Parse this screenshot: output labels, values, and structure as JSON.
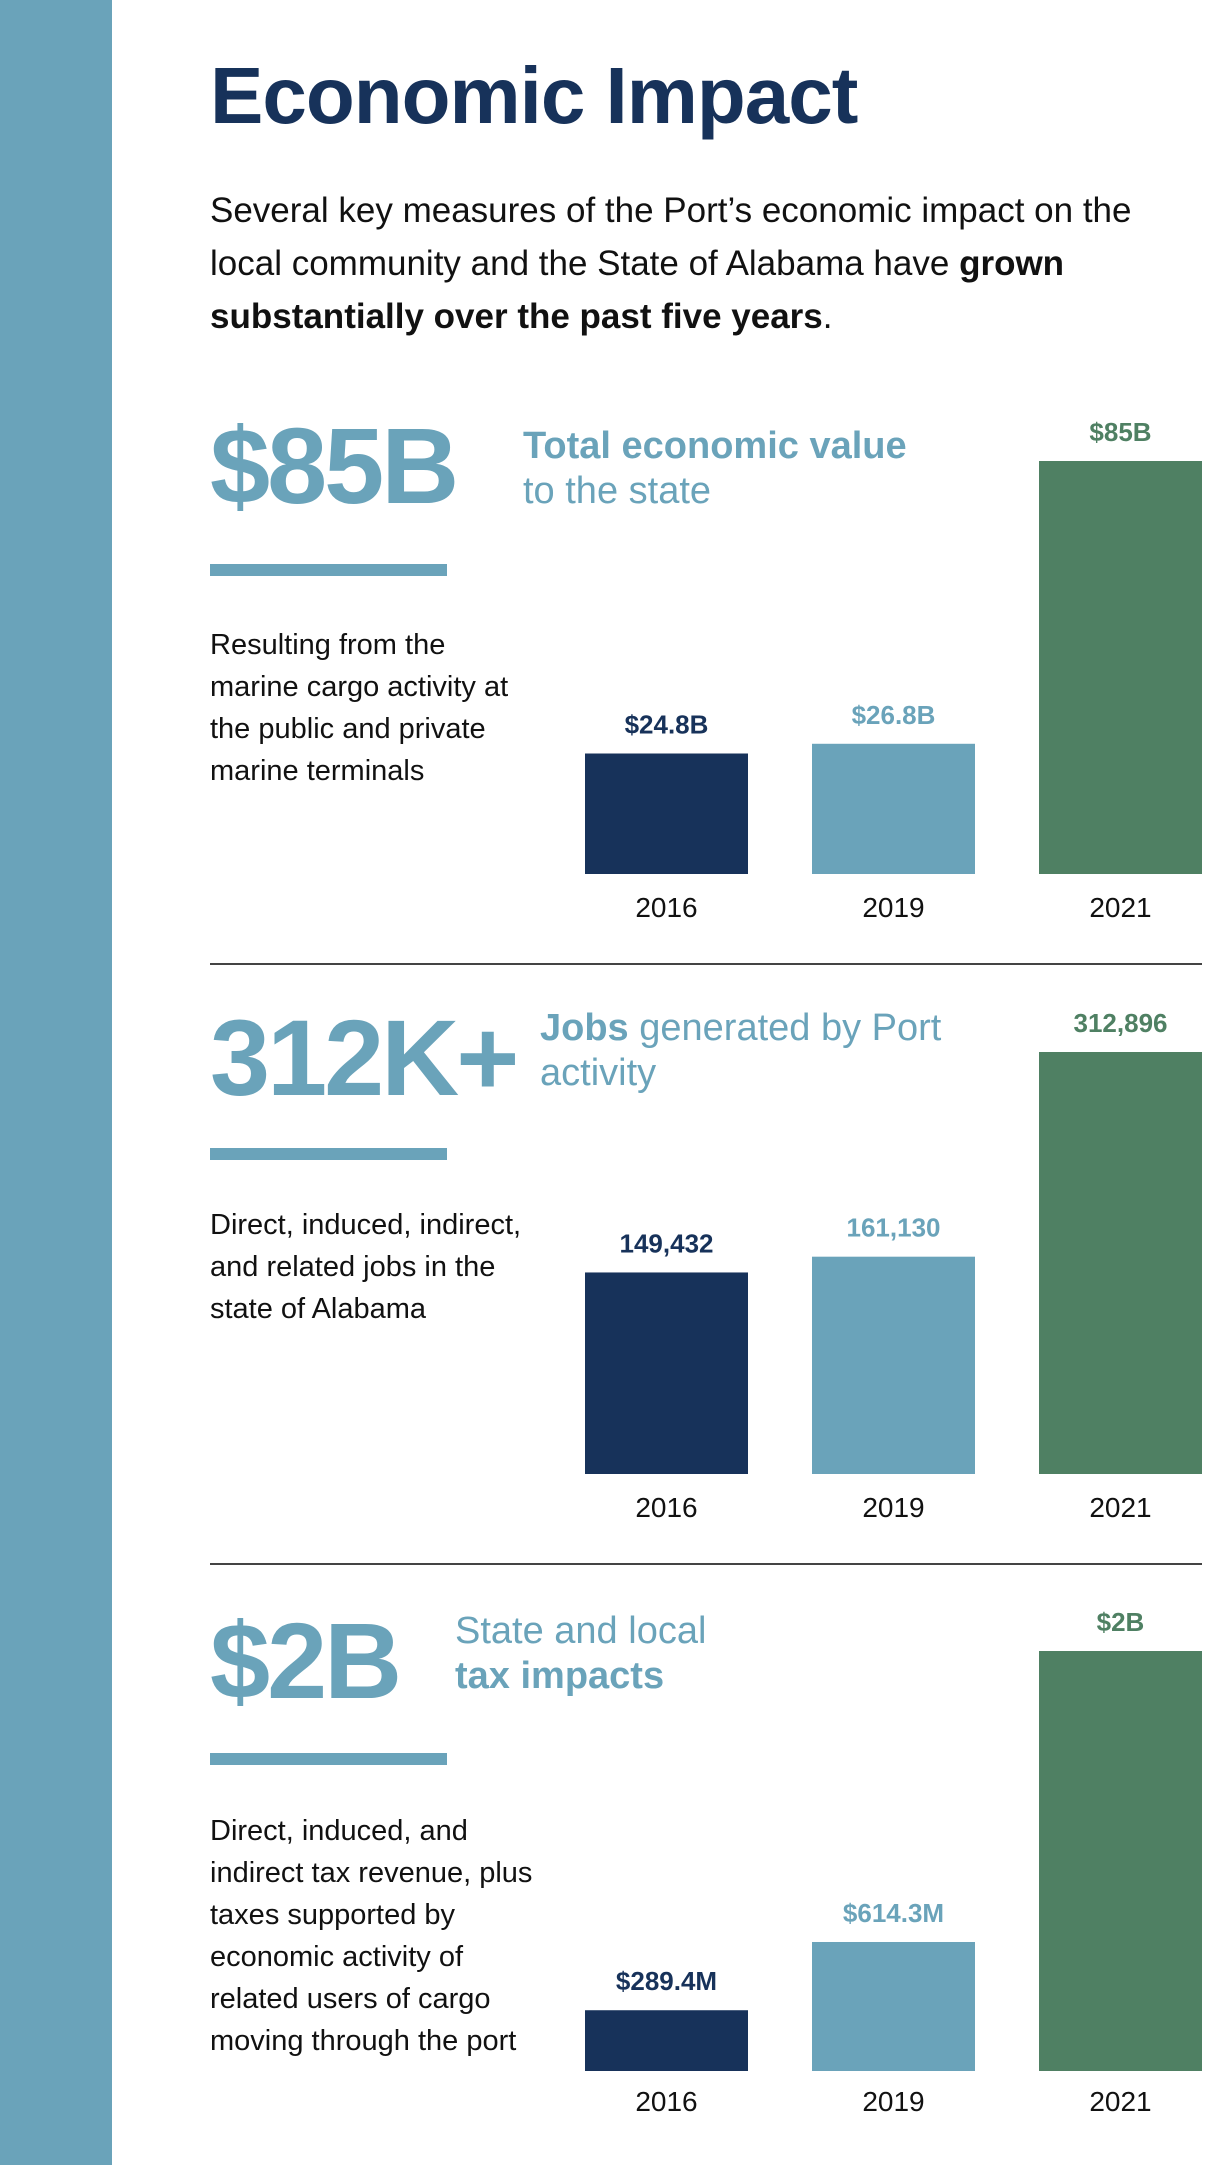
{
  "header": {
    "title": "Economic Impact",
    "intro_pre": "Several key measures of the Port’s economic impact on the local community and the State of Alabama have ",
    "intro_bold": "grown substantially over the past five years",
    "intro_post": "."
  },
  "colors": {
    "band": "#6aa3ba",
    "bar_2016": "#17325a",
    "bar_2019": "#6aa3ba",
    "bar_2021": "#4f8063"
  },
  "sections": [
    {
      "stat": "$85B",
      "label_bold": "Total economic value",
      "label_regular": "to the state",
      "description": "Resulting from the marine cargo activity at the public and private marine terminals"
    },
    {
      "stat": "312K+",
      "label_bold": "Jobs",
      "label_regular": " generated by Port activity",
      "description": "Direct, induced, indirect, and related jobs in the state of Alabama"
    },
    {
      "stat": "$2B",
      "label_regular": "State and local",
      "label_bold": "tax impacts",
      "description": "Direct, induced, and indirect tax revenue, plus taxes supported by economic activity of related users of cargo moving through the port"
    }
  ],
  "chart_data": [
    {
      "type": "bar",
      "title": "",
      "categories": [
        "2016",
        "2019",
        "2021"
      ],
      "values": [
        24.8,
        26.8,
        85
      ],
      "value_labels": [
        "$24.8B",
        "$26.8B",
        "$85B"
      ],
      "unit": "billion USD",
      "ylim": [
        0,
        85
      ],
      "grid": false
    },
    {
      "type": "bar",
      "title": "",
      "categories": [
        "2016",
        "2019",
        "2021"
      ],
      "values": [
        149432,
        161130,
        312896
      ],
      "value_labels": [
        "149,432",
        "161,130",
        "312,896"
      ],
      "unit": "jobs",
      "ylim": [
        0,
        312896
      ],
      "grid": false
    },
    {
      "type": "bar",
      "title": "",
      "categories": [
        "2016",
        "2019",
        "2021"
      ],
      "values": [
        289.4,
        614.3,
        2000
      ],
      "value_labels": [
        "$289.4M",
        "$614.3M",
        "$2B"
      ],
      "unit": "million USD",
      "ylim": [
        0,
        2000
      ],
      "grid": false
    }
  ]
}
